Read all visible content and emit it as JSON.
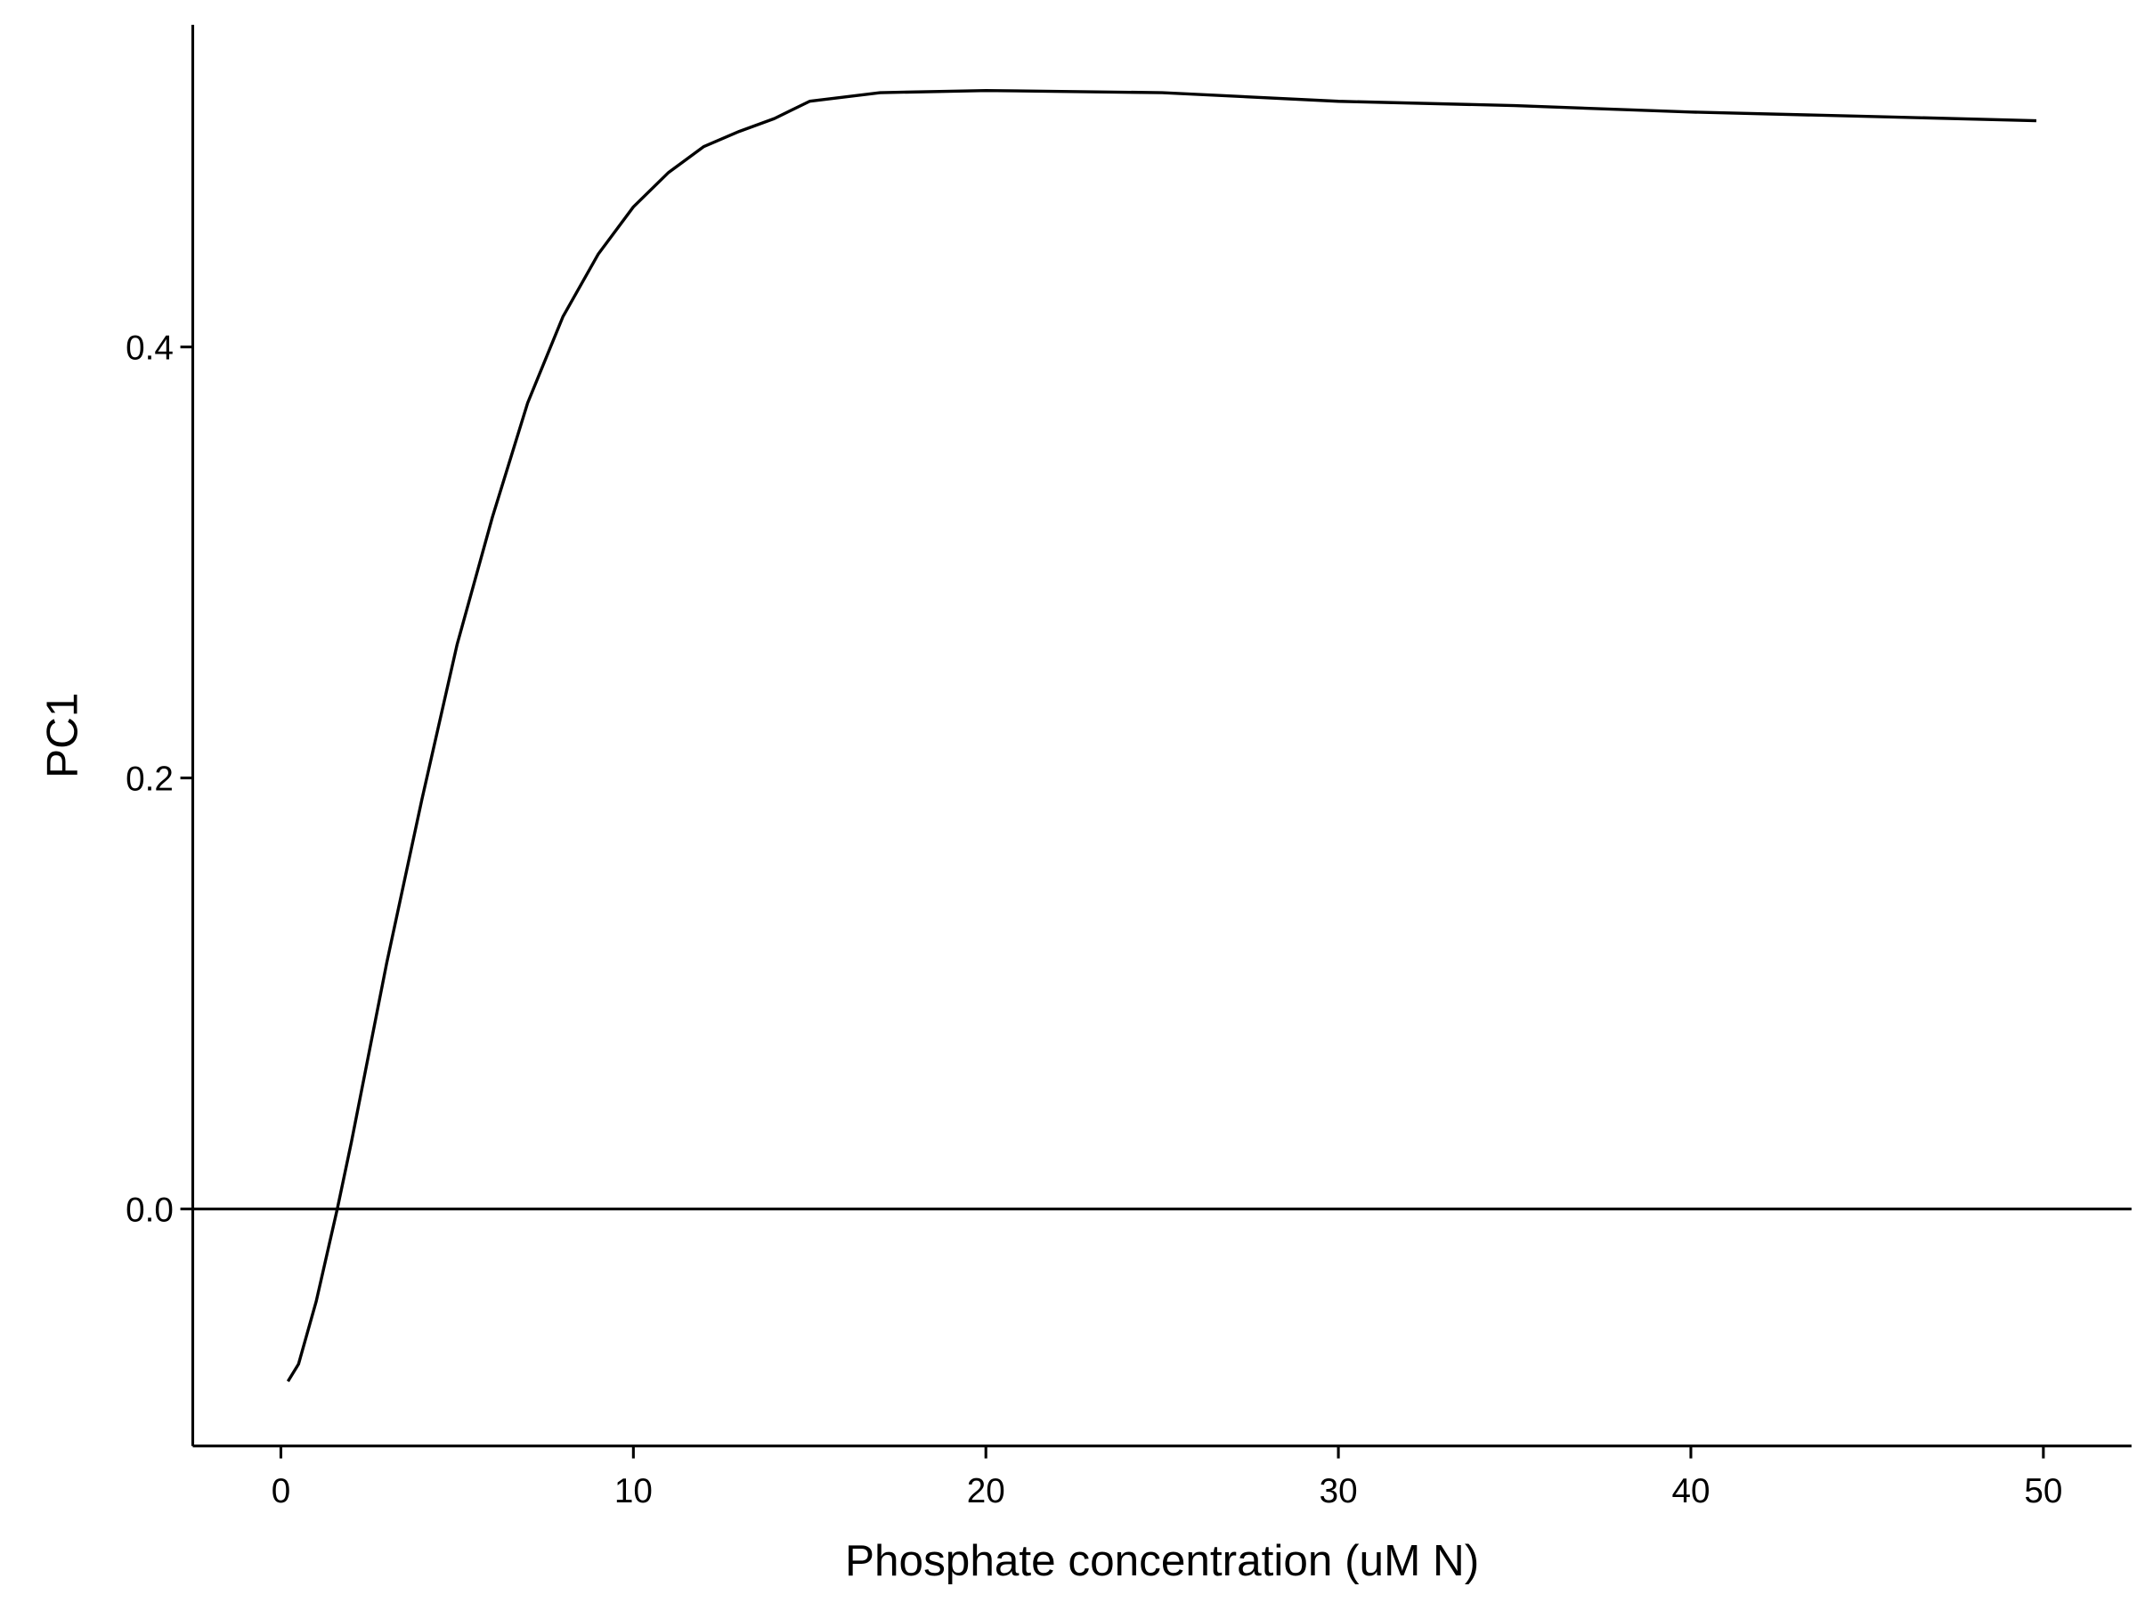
{
  "chart_data": {
    "type": "line",
    "x_label": "Phosphate concentration (uM N)",
    "y_label": "PC1",
    "x": [
      0.2,
      0.5,
      1,
      1.6,
      2,
      3,
      4,
      5,
      6,
      7,
      8,
      9,
      10,
      11,
      12,
      13,
      14,
      15,
      17,
      20,
      25,
      30,
      35,
      40,
      45,
      49.8
    ],
    "series": [
      {
        "color": "#000000",
        "values": [
          -0.08,
          -0.072,
          -0.043,
          0.0,
          0.031,
          0.114,
          0.19,
          0.262,
          0.321,
          0.374,
          0.414,
          0.443,
          0.465,
          0.481,
          0.493,
          0.5,
          0.506,
          0.514,
          0.518,
          0.519,
          0.518,
          0.514,
          0.512,
          0.509,
          0.507,
          0.505
        ]
      }
    ],
    "hline": 0,
    "xlim": [
      -2.5,
      52.5
    ],
    "ylim": [
      -0.11,
      0.5495
    ],
    "xticks": [
      0,
      10,
      20,
      30,
      40,
      50
    ],
    "yticks": [
      {
        "value": 0,
        "label": "0.0"
      },
      0.2,
      0.4
    ]
  }
}
